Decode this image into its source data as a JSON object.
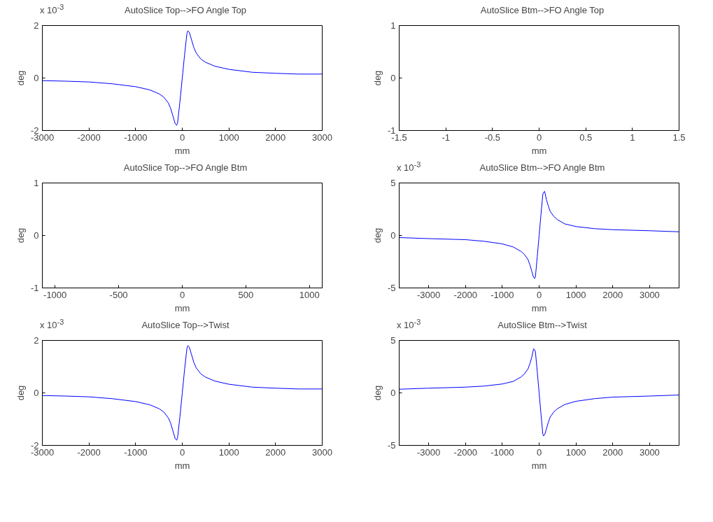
{
  "chart_data": [
    {
      "type": "line",
      "title": "AutoSlice Top-->FO Angle Top",
      "xlabel": "mm",
      "ylabel": "deg",
      "annotations": [
        "x 10$^{-3}$"
      ],
      "xlim": [
        -3000,
        3000
      ],
      "xticks": [
        -3000,
        -2000,
        -1000,
        0,
        1000,
        2000,
        3000
      ],
      "ylim": [
        -2,
        2
      ],
      "yticks": [
        -2,
        0,
        2
      ],
      "grid": false,
      "series": [
        {
          "color": "#0000ff",
          "x": [
            -3000,
            -2500,
            -2000,
            -1500,
            -1000,
            -700,
            -500,
            -400,
            -300,
            -250,
            -200,
            -150,
            -120,
            -100,
            -50,
            0,
            50,
            100,
            120,
            150,
            200,
            250,
            300,
            400,
            500,
            700,
            1000,
            1500,
            2000,
            2500,
            3000
          ],
          "values": [
            -0.1,
            -0.12,
            -0.15,
            -0.22,
            -0.33,
            -0.45,
            -0.6,
            -0.72,
            -0.95,
            -1.15,
            -1.45,
            -1.75,
            -1.8,
            -1.7,
            -0.9,
            0,
            0.9,
            1.7,
            1.8,
            1.75,
            1.45,
            1.15,
            0.95,
            0.72,
            0.6,
            0.45,
            0.33,
            0.22,
            0.18,
            0.15,
            0.15
          ]
        }
      ]
    },
    {
      "type": "line",
      "title": "AutoSlice Btm-->FO Angle Top",
      "xlabel": "mm",
      "ylabel": "deg",
      "xlim": [
        -1.5,
        1.5
      ],
      "xticks": [
        -1.5,
        -1,
        -0.5,
        0,
        0.5,
        1,
        1.5
      ],
      "ylim": [
        -1,
        1
      ],
      "yticks": [
        -1,
        0,
        1
      ],
      "grid": false
    },
    {
      "type": "line",
      "title": "AutoSlice Top-->FO Angle Btm",
      "xlabel": "mm",
      "ylabel": "deg",
      "xlim": [
        -1100,
        1100
      ],
      "xticks": [
        -1000,
        -500,
        0,
        500,
        1000
      ],
      "ylim": [
        -1,
        1
      ],
      "yticks": [
        -1,
        0,
        1
      ],
      "grid": false
    },
    {
      "type": "line",
      "title": "AutoSlice Btm-->FO Angle Btm",
      "xlabel": "mm",
      "ylabel": "deg",
      "annotations": [
        "x 10$^{-3}$"
      ],
      "xlim": [
        -3800,
        3800
      ],
      "xticks": [
        -3000,
        -2000,
        -1000,
        0,
        1000,
        2000,
        3000
      ],
      "ylim": [
        -5,
        5
      ],
      "yticks": [
        -5,
        0,
        5
      ],
      "grid": false,
      "series": [
        {
          "color": "#0000ff",
          "x": [
            -3800,
            -3000,
            -2000,
            -1500,
            -1000,
            -700,
            -500,
            -400,
            -300,
            -250,
            -200,
            -150,
            -120,
            -100,
            -50,
            0,
            50,
            100,
            120,
            150,
            200,
            250,
            300,
            400,
            500,
            700,
            1000,
            1500,
            2000,
            3000,
            3800
          ],
          "values": [
            -0.2,
            -0.3,
            -0.4,
            -0.55,
            -0.8,
            -1.1,
            -1.5,
            -1.8,
            -2.3,
            -2.8,
            -3.4,
            -4.0,
            -4.1,
            -3.9,
            -2.0,
            0,
            2.0,
            3.9,
            4.1,
            4.2,
            3.4,
            2.8,
            2.3,
            1.8,
            1.5,
            1.1,
            0.85,
            0.65,
            0.55,
            0.45,
            0.35
          ]
        }
      ]
    },
    {
      "type": "line",
      "title": "AutoSlice Top-->Twist",
      "xlabel": "mm",
      "ylabel": "deg",
      "annotations": [
        "x 10$^{-3}$"
      ],
      "xlim": [
        -3000,
        3000
      ],
      "xticks": [
        -3000,
        -2000,
        -1000,
        0,
        1000,
        2000,
        3000
      ],
      "ylim": [
        -2,
        2
      ],
      "yticks": [
        -2,
        0,
        2
      ],
      "grid": false,
      "series": [
        {
          "color": "#0000ff",
          "x": [
            -3000,
            -2500,
            -2000,
            -1500,
            -1000,
            -700,
            -500,
            -400,
            -300,
            -250,
            -200,
            -150,
            -120,
            -100,
            -50,
            0,
            50,
            100,
            120,
            150,
            200,
            250,
            300,
            400,
            500,
            700,
            1000,
            1500,
            2000,
            2500,
            3000
          ],
          "values": [
            -0.1,
            -0.12,
            -0.15,
            -0.22,
            -0.33,
            -0.45,
            -0.6,
            -0.72,
            -0.95,
            -1.15,
            -1.45,
            -1.75,
            -1.8,
            -1.7,
            -0.9,
            0,
            0.9,
            1.7,
            1.8,
            1.75,
            1.45,
            1.15,
            0.95,
            0.72,
            0.6,
            0.45,
            0.33,
            0.22,
            0.18,
            0.15,
            0.15
          ]
        }
      ]
    },
    {
      "type": "line",
      "title": "AutoSlice Btm-->Twist",
      "xlabel": "mm",
      "ylabel": "deg",
      "annotations": [
        "x 10$^{-3}$"
      ],
      "xlim": [
        -3800,
        3800
      ],
      "xticks": [
        -3000,
        -2000,
        -1000,
        0,
        1000,
        2000,
        3000
      ],
      "ylim": [
        -5,
        5
      ],
      "yticks": [
        -5,
        0,
        5
      ],
      "grid": false,
      "series": [
        {
          "color": "#0000ff",
          "x": [
            -3800,
            -3000,
            -2000,
            -1500,
            -1000,
            -700,
            -500,
            -400,
            -300,
            -250,
            -200,
            -150,
            -120,
            -100,
            -50,
            0,
            50,
            100,
            120,
            150,
            200,
            250,
            300,
            400,
            500,
            700,
            1000,
            1500,
            2000,
            3000,
            3800
          ],
          "values": [
            0.35,
            0.45,
            0.55,
            0.65,
            0.85,
            1.1,
            1.5,
            1.8,
            2.3,
            2.8,
            3.4,
            4.2,
            4.1,
            3.9,
            2.0,
            0,
            -2.0,
            -3.9,
            -4.1,
            -4.0,
            -3.4,
            -2.8,
            -2.3,
            -1.8,
            -1.5,
            -1.1,
            -0.8,
            -0.55,
            -0.4,
            -0.3,
            -0.2
          ]
        }
      ]
    }
  ]
}
